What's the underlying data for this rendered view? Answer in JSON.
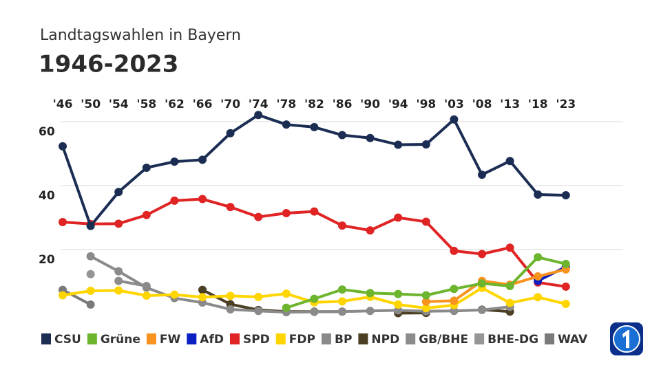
{
  "title": "Landtagswahlen in Bayern",
  "subtitle": "1946-2023",
  "chart_data": {
    "type": "line",
    "categories": [
      "'46",
      "'50",
      "'54",
      "'58",
      "'62",
      "'66",
      "'70",
      "'74",
      "'78",
      "'82",
      "'86",
      "'90",
      "'94",
      "'98",
      "'03",
      "'08",
      "'13",
      "'18",
      "'23"
    ],
    "ylim": [
      0,
      62
    ],
    "yticks": [
      20,
      40,
      60
    ],
    "grid": true,
    "series": [
      {
        "name": "CSU",
        "color": "#1b2d52",
        "values": [
          52.3,
          27.4,
          38.0,
          45.6,
          47.5,
          48.1,
          56.4,
          62.1,
          59.1,
          58.3,
          55.8,
          54.9,
          52.8,
          52.9,
          60.7,
          43.4,
          47.7,
          37.2,
          37.0
        ]
      },
      {
        "name": "Grüne",
        "color": "#6cb52d",
        "values": [
          null,
          null,
          null,
          null,
          null,
          null,
          null,
          null,
          1.8,
          4.6,
          7.5,
          6.4,
          6.1,
          5.7,
          7.7,
          9.4,
          8.6,
          17.6,
          15.5
        ]
      },
      {
        "name": "FW",
        "color": "#f7931e",
        "values": [
          null,
          null,
          null,
          null,
          null,
          null,
          null,
          null,
          null,
          null,
          null,
          null,
          null,
          3.7,
          4.0,
          10.2,
          9.0,
          11.6,
          13.8
        ]
      },
      {
        "name": "AfD",
        "color": "#0b1fc2",
        "values": [
          null,
          null,
          null,
          null,
          null,
          null,
          null,
          null,
          null,
          null,
          null,
          null,
          null,
          null,
          null,
          null,
          null,
          10.2,
          14.6
        ]
      },
      {
        "name": "SPD",
        "color": "#e02323",
        "values": [
          28.6,
          28.0,
          28.1,
          30.8,
          35.3,
          35.8,
          33.3,
          30.2,
          31.4,
          31.9,
          27.5,
          26.0,
          30.0,
          28.7,
          19.6,
          18.6,
          20.6,
          9.7,
          8.4
        ]
      },
      {
        "name": "FDP",
        "color": "#ffd500",
        "values": [
          5.7,
          7.1,
          7.2,
          5.6,
          5.9,
          5.1,
          5.5,
          5.2,
          6.2,
          3.5,
          3.8,
          5.2,
          2.8,
          1.7,
          2.6,
          8.0,
          3.3,
          5.1,
          3.0
        ]
      },
      {
        "name": "BP",
        "color": "#8a8a8a",
        "values": [
          null,
          17.9,
          13.2,
          8.1,
          4.8,
          3.4,
          1.3,
          0.8,
          0.4,
          0.5,
          0.6,
          0.8,
          1.0,
          0.7,
          0.8,
          1.1,
          2.1,
          null,
          null
        ]
      },
      {
        "name": "NPD",
        "color": "#4b3f24",
        "values": [
          null,
          null,
          null,
          null,
          null,
          7.4,
          2.9,
          1.1,
          0.6,
          0.6,
          0.6,
          null,
          0.1,
          0.2,
          null,
          1.2,
          0.6,
          null,
          null
        ]
      },
      {
        "name": "GB/BHE",
        "color": "#8c8c8c",
        "values": [
          null,
          null,
          10.2,
          8.6,
          null,
          null,
          null,
          null,
          null,
          null,
          null,
          null,
          null,
          null,
          null,
          null,
          null,
          null,
          null
        ]
      },
      {
        "name": "BHE-DG",
        "color": "#959595",
        "values": [
          null,
          12.3,
          null,
          null,
          null,
          null,
          null,
          null,
          null,
          null,
          null,
          null,
          null,
          null,
          null,
          null,
          null,
          null,
          null
        ]
      },
      {
        "name": "WAV",
        "color": "#7a7a7a",
        "values": [
          7.4,
          2.8,
          null,
          null,
          null,
          null,
          null,
          null,
          null,
          null,
          null,
          null,
          null,
          null,
          null,
          null,
          null,
          null,
          null
        ]
      }
    ]
  }
}
